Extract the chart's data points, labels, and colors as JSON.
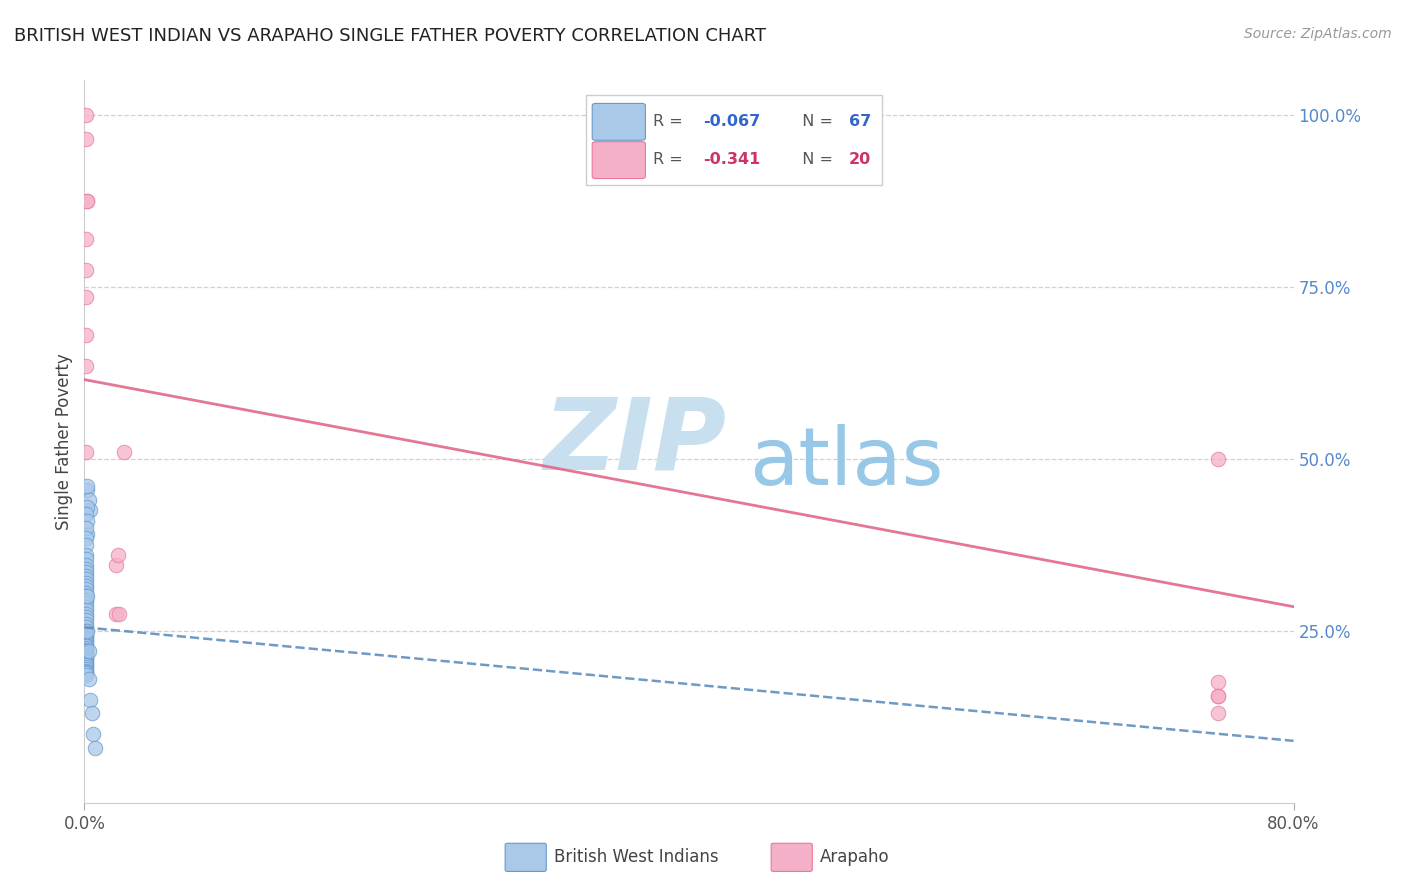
{
  "title": "BRITISH WEST INDIAN VS ARAPAHO SINGLE FATHER POVERTY CORRELATION CHART",
  "source": "Source: ZipAtlas.com",
  "ylabel": "Single Father Poverty",
  "watermark_zip": "ZIP",
  "watermark_atlas": "atlas",
  "legend_blue_r": "-0.067",
  "legend_blue_n": "67",
  "legend_pink_r": "-0.341",
  "legend_pink_n": "20",
  "blue_color": "#aac8e8",
  "pink_color": "#f4b0c8",
  "blue_edge_color": "#6699cc",
  "pink_edge_color": "#e87898",
  "blue_trend_color": "#5588bb",
  "pink_trend_color": "#e06888",
  "right_axis_color": "#5588cc",
  "watermark_zip_color": "#c8dff0",
  "watermark_atlas_color": "#98c8e8",
  "blue_x": [
    0.002,
    0.004,
    0.002,
    0.002,
    0.003,
    0.002,
    0.001,
    0.002,
    0.001,
    0.001,
    0.001,
    0.001,
    0.001,
    0.001,
    0.001,
    0.001,
    0.001,
    0.001,
    0.001,
    0.001,
    0.001,
    0.001,
    0.001,
    0.001,
    0.001,
    0.001,
    0.001,
    0.001,
    0.001,
    0.001,
    0.001,
    0.001,
    0.001,
    0.001,
    0.001,
    0.001,
    0.001,
    0.001,
    0.001,
    0.001,
    0.001,
    0.001,
    0.001,
    0.001,
    0.001,
    0.001,
    0.001,
    0.001,
    0.001,
    0.001,
    0.001,
    0.001,
    0.001,
    0.001,
    0.001,
    0.001,
    0.001,
    0.001,
    0.001,
    0.002,
    0.002,
    0.003,
    0.003,
    0.004,
    0.005,
    0.006,
    0.007
  ],
  "blue_y": [
    0.455,
    0.425,
    0.39,
    0.46,
    0.44,
    0.43,
    0.42,
    0.41,
    0.4,
    0.385,
    0.375,
    0.36,
    0.355,
    0.345,
    0.34,
    0.335,
    0.33,
    0.325,
    0.32,
    0.315,
    0.31,
    0.305,
    0.3,
    0.295,
    0.29,
    0.285,
    0.28,
    0.275,
    0.27,
    0.265,
    0.26,
    0.255,
    0.25,
    0.248,
    0.245,
    0.242,
    0.24,
    0.238,
    0.235,
    0.232,
    0.23,
    0.228,
    0.225,
    0.222,
    0.22,
    0.218,
    0.215,
    0.212,
    0.21,
    0.208,
    0.205,
    0.202,
    0.2,
    0.198,
    0.195,
    0.192,
    0.19,
    0.188,
    0.185,
    0.3,
    0.25,
    0.22,
    0.18,
    0.15,
    0.13,
    0.1,
    0.08
  ],
  "pink_x": [
    0.001,
    0.001,
    0.002,
    0.002,
    0.001,
    0.001,
    0.001,
    0.001,
    0.001,
    0.001,
    0.021,
    0.021,
    0.022,
    0.023,
    0.026,
    0.75,
    0.75,
    0.75,
    0.75,
    0.75
  ],
  "pink_y": [
    1.0,
    0.965,
    0.875,
    0.875,
    0.82,
    0.775,
    0.735,
    0.68,
    0.635,
    0.51,
    0.345,
    0.275,
    0.36,
    0.275,
    0.51,
    0.5,
    0.155,
    0.13,
    0.175,
    0.155
  ],
  "blue_trend_x": [
    0.0,
    0.8
  ],
  "blue_trend_y": [
    0.255,
    0.09
  ],
  "pink_trend_x": [
    0.0,
    0.8
  ],
  "pink_trend_y": [
    0.615,
    0.285
  ],
  "xlim": [
    0.0,
    0.8
  ],
  "ylim": [
    0.0,
    1.05
  ],
  "right_yticks": [
    0.0,
    0.25,
    0.5,
    0.75,
    1.0
  ],
  "right_yticklabels": [
    "",
    "25.0%",
    "50.0%",
    "75.0%",
    "100.0%"
  ]
}
